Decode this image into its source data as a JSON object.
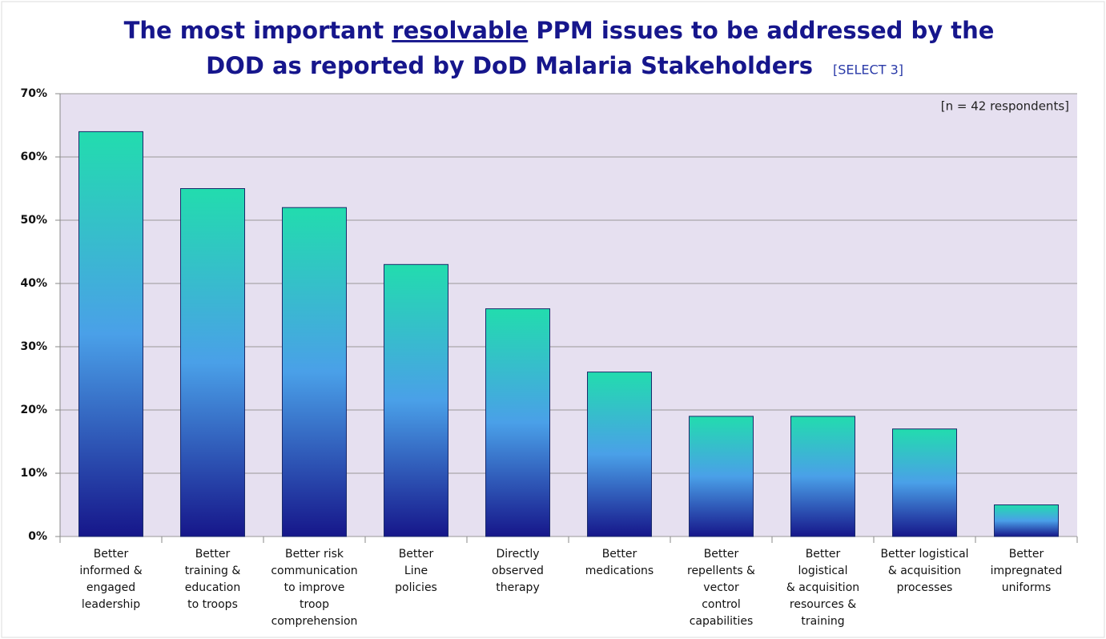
{
  "chart_data": {
    "type": "bar",
    "title_line1": [
      "The most important ",
      "resolvable",
      " PPM issues to be addressed by the"
    ],
    "title_line2": "DOD as reported by DoD Malaria Stakeholders",
    "subtitle": "[SELECT 3]",
    "annotation": "[n = 42 respondents]",
    "categories": [
      "Better\ninformed &\nengaged\nleadership",
      "Better\ntraining &\neducation\nto troops",
      "Better risk\ncommunication\nto improve\ntroop\ncomprehension",
      "Better\nLine\npolicies",
      "Directly\nobserved\ntherapy",
      "Better\nmedications",
      "Better\nrepellents &\nvector\ncontrol\ncapabilities",
      "Better\nlogistical\n& acquisition\nresources &\ntraining",
      "Better logistical\n& acquisition\nprocesses",
      "Better\nimpregnated\nuniforms"
    ],
    "values": [
      64,
      55,
      52,
      43,
      36,
      26,
      19,
      19,
      17,
      5
    ],
    "color": [
      "#22dcae",
      "#4aa0e8",
      "#16168a"
    ],
    "ylim": [
      0,
      70
    ],
    "yticks": [
      {
        "value": 0,
        "label": "0%"
      },
      {
        "value": 10,
        "label": "10%"
      },
      {
        "value": 20,
        "label": "20%"
      },
      {
        "value": 30,
        "label": "30%"
      },
      {
        "value": 40,
        "label": "40%"
      },
      {
        "value": 50,
        "label": "50%"
      },
      {
        "value": 60,
        "label": "60%"
      },
      {
        "value": 70,
        "label": "70%"
      }
    ],
    "grid": true
  }
}
